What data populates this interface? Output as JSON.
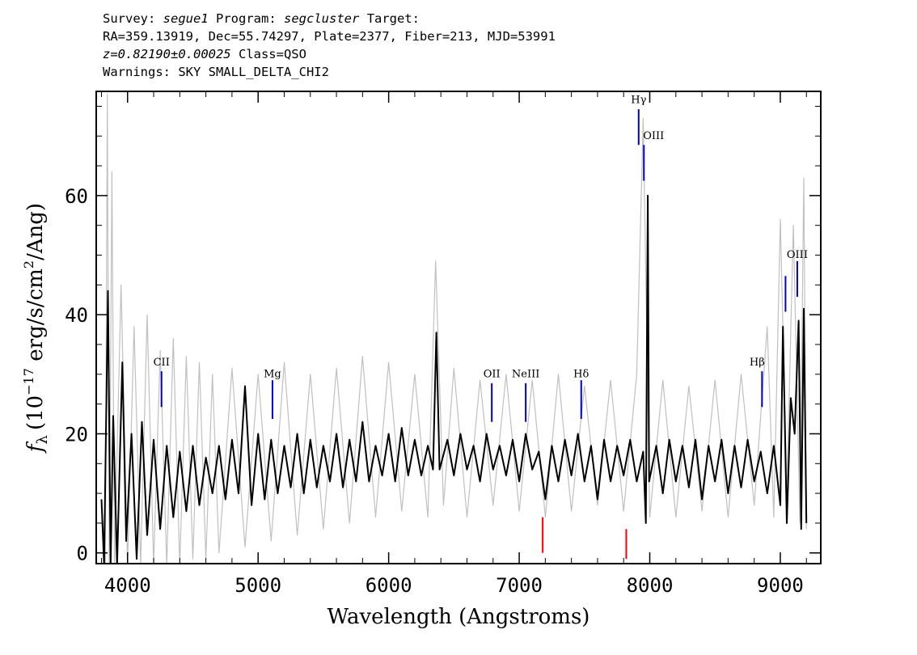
{
  "header": {
    "survey_label": "Survey:",
    "survey": "segue1",
    "program_label": "Program:",
    "program": "segcluster",
    "target_label": "Target:",
    "line2": "RA=359.13919, Dec=55.74297, Plate=2377, Fiber=213, MJD=53991",
    "redshift": "z=0.82190±0.00025",
    "class_text": "Class=QSO",
    "warnings": "Warnings: SKY SMALL_DELTA_CHI2"
  },
  "chart_data": {
    "type": "line",
    "title": "",
    "xlabel": "Wavelength (Angstroms)",
    "ylabel": "f_λ (10^-17 erg/s/cm²/Ang)",
    "ylabel_parts": {
      "f": "f",
      "lambda": "λ",
      "open": "(10",
      "exp": "−17",
      "mid": " erg/s/cm",
      "sq": "2",
      "close": "/Ang)"
    },
    "xlim": [
      3760,
      9310
    ],
    "ylim": [
      -1.8,
      77.5
    ],
    "xticks": [
      4000,
      5000,
      6000,
      7000,
      8000,
      9000
    ],
    "xtick_labels": [
      "4000",
      "5000",
      "6000",
      "7000",
      "8000",
      "9000"
    ],
    "yticks": [
      0,
      20,
      40,
      60
    ],
    "ytick_labels": [
      "0",
      "20",
      "40",
      "60"
    ],
    "series": [
      {
        "name": "error",
        "color": "#c0c0c0",
        "points": [
          [
            3800,
            9
          ],
          [
            3830,
            -2
          ],
          [
            3845,
            77
          ],
          [
            3860,
            -2
          ],
          [
            3880,
            64
          ],
          [
            3900,
            -2
          ],
          [
            3950,
            45
          ],
          [
            4000,
            -2
          ],
          [
            4050,
            38
          ],
          [
            4100,
            -2
          ],
          [
            4150,
            40
          ],
          [
            4200,
            -2
          ],
          [
            4250,
            34
          ],
          [
            4300,
            -2
          ],
          [
            4350,
            36
          ],
          [
            4400,
            -2
          ],
          [
            4450,
            33
          ],
          [
            4500,
            -1
          ],
          [
            4550,
            32
          ],
          [
            4600,
            -1
          ],
          [
            4650,
            30
          ],
          [
            4700,
            0
          ],
          [
            4800,
            31
          ],
          [
            4900,
            1
          ],
          [
            5000,
            30
          ],
          [
            5100,
            2
          ],
          [
            5200,
            32
          ],
          [
            5300,
            3
          ],
          [
            5400,
            30
          ],
          [
            5500,
            4
          ],
          [
            5600,
            31
          ],
          [
            5700,
            5
          ],
          [
            5800,
            33
          ],
          [
            5900,
            6
          ],
          [
            6000,
            32
          ],
          [
            6100,
            7
          ],
          [
            6200,
            30
          ],
          [
            6300,
            6
          ],
          [
            6360,
            49
          ],
          [
            6420,
            8
          ],
          [
            6500,
            31
          ],
          [
            6600,
            6
          ],
          [
            6700,
            29
          ],
          [
            6800,
            8
          ],
          [
            6900,
            30
          ],
          [
            7000,
            7
          ],
          [
            7100,
            29
          ],
          [
            7200,
            6
          ],
          [
            7300,
            30
          ],
          [
            7400,
            7
          ],
          [
            7500,
            28
          ],
          [
            7600,
            8
          ],
          [
            7700,
            29
          ],
          [
            7800,
            7
          ],
          [
            7900,
            30
          ],
          [
            7950,
            73
          ],
          [
            8000,
            6
          ],
          [
            8100,
            29
          ],
          [
            8200,
            6
          ],
          [
            8300,
            28
          ],
          [
            8400,
            7
          ],
          [
            8500,
            29
          ],
          [
            8600,
            6
          ],
          [
            8700,
            30
          ],
          [
            8800,
            8
          ],
          [
            8900,
            38
          ],
          [
            8950,
            6
          ],
          [
            9000,
            56
          ],
          [
            9050,
            10
          ],
          [
            9100,
            55
          ],
          [
            9150,
            5
          ],
          [
            9180,
            63
          ],
          [
            9200,
            4
          ]
        ]
      },
      {
        "name": "flux",
        "color": "#000000",
        "points": [
          [
            3800,
            9
          ],
          [
            3820,
            -2
          ],
          [
            3850,
            44
          ],
          [
            3870,
            -2
          ],
          [
            3890,
            23
          ],
          [
            3920,
            -2
          ],
          [
            3960,
            32
          ],
          [
            3990,
            2
          ],
          [
            4030,
            20
          ],
          [
            4070,
            -1
          ],
          [
            4110,
            22
          ],
          [
            4150,
            3
          ],
          [
            4200,
            19
          ],
          [
            4250,
            4
          ],
          [
            4300,
            18
          ],
          [
            4350,
            6
          ],
          [
            4400,
            17
          ],
          [
            4450,
            7
          ],
          [
            4500,
            18
          ],
          [
            4550,
            8
          ],
          [
            4600,
            16
          ],
          [
            4650,
            10
          ],
          [
            4700,
            18
          ],
          [
            4750,
            9
          ],
          [
            4800,
            19
          ],
          [
            4850,
            10
          ],
          [
            4900,
            28
          ],
          [
            4950,
            8
          ],
          [
            5000,
            20
          ],
          [
            5050,
            9
          ],
          [
            5100,
            19
          ],
          [
            5150,
            10
          ],
          [
            5200,
            18
          ],
          [
            5250,
            11
          ],
          [
            5300,
            20
          ],
          [
            5350,
            10
          ],
          [
            5400,
            19
          ],
          [
            5450,
            11
          ],
          [
            5500,
            18
          ],
          [
            5550,
            12
          ],
          [
            5600,
            20
          ],
          [
            5650,
            11
          ],
          [
            5700,
            19
          ],
          [
            5750,
            12
          ],
          [
            5800,
            22
          ],
          [
            5850,
            12
          ],
          [
            5900,
            18
          ],
          [
            5950,
            13
          ],
          [
            6000,
            20
          ],
          [
            6050,
            12
          ],
          [
            6100,
            21
          ],
          [
            6150,
            13
          ],
          [
            6200,
            19
          ],
          [
            6250,
            13
          ],
          [
            6300,
            18
          ],
          [
            6340,
            14
          ],
          [
            6365,
            37
          ],
          [
            6390,
            14
          ],
          [
            6450,
            19
          ],
          [
            6500,
            13
          ],
          [
            6550,
            20
          ],
          [
            6600,
            14
          ],
          [
            6650,
            18
          ],
          [
            6700,
            12
          ],
          [
            6750,
            20
          ],
          [
            6800,
            14
          ],
          [
            6850,
            18
          ],
          [
            6900,
            13
          ],
          [
            6950,
            19
          ],
          [
            7000,
            12
          ],
          [
            7050,
            20
          ],
          [
            7100,
            14
          ],
          [
            7150,
            17
          ],
          [
            7200,
            9
          ],
          [
            7250,
            18
          ],
          [
            7300,
            12
          ],
          [
            7350,
            19
          ],
          [
            7400,
            13
          ],
          [
            7450,
            20
          ],
          [
            7500,
            12
          ],
          [
            7550,
            18
          ],
          [
            7600,
            9
          ],
          [
            7650,
            19
          ],
          [
            7700,
            12
          ],
          [
            7750,
            18
          ],
          [
            7800,
            13
          ],
          [
            7850,
            19
          ],
          [
            7900,
            12
          ],
          [
            7950,
            17
          ],
          [
            7970,
            5
          ],
          [
            7985,
            60
          ],
          [
            7995,
            12
          ],
          [
            8050,
            18
          ],
          [
            8100,
            10
          ],
          [
            8150,
            19
          ],
          [
            8200,
            12
          ],
          [
            8250,
            18
          ],
          [
            8300,
            11
          ],
          [
            8350,
            19
          ],
          [
            8400,
            9
          ],
          [
            8450,
            18
          ],
          [
            8500,
            12
          ],
          [
            8550,
            19
          ],
          [
            8600,
            10
          ],
          [
            8650,
            18
          ],
          [
            8700,
            11
          ],
          [
            8750,
            19
          ],
          [
            8800,
            12
          ],
          [
            8850,
            17
          ],
          [
            8900,
            10
          ],
          [
            8950,
            18
          ],
          [
            9000,
            8
          ],
          [
            9020,
            38
          ],
          [
            9050,
            5
          ],
          [
            9080,
            26
          ],
          [
            9110,
            20
          ],
          [
            9140,
            39
          ],
          [
            9160,
            4
          ],
          [
            9180,
            41
          ],
          [
            9200,
            5
          ]
        ]
      }
    ],
    "emission_lines": [
      {
        "label": "CII",
        "x": 4260,
        "y_bottom": 24.5,
        "y_top": 30.5,
        "color": "#0000cc",
        "label_y": 31.5,
        "label_dx": 0
      },
      {
        "label": "Mg",
        "x": 5110,
        "y_bottom": 22.5,
        "y_top": 29.0,
        "color": "#0000cc",
        "label_y": 29.5,
        "label_dx": 0
      },
      {
        "label": "OII",
        "x": 6790,
        "y_bottom": 22.0,
        "y_top": 28.5,
        "color": "#0000cc",
        "label_y": 29.5,
        "label_dx": 0
      },
      {
        "label": "NeIII",
        "x": 7050,
        "y_bottom": 22.0,
        "y_top": 28.5,
        "color": "#0000cc",
        "label_y": 29.5,
        "label_dx": 0
      },
      {
        "label": "Hδ",
        "x": 7475,
        "y_bottom": 22.5,
        "y_top": 29.0,
        "color": "#0000cc",
        "label_y": 29.5,
        "label_dx": 0
      },
      {
        "label": "Hγ",
        "x": 7915,
        "y_bottom": 68.5,
        "y_top": 74.5,
        "color": "#0000cc",
        "label_y": 75.5,
        "label_dx": 0
      },
      {
        "label": "OIII",
        "x": 7955,
        "y_bottom": 62.5,
        "y_top": 68.5,
        "color": "#0000cc",
        "label_y": 69.5,
        "label_dx": 12
      },
      {
        "label": "Hβ",
        "x": 8860,
        "y_bottom": 24.5,
        "y_top": 30.5,
        "color": "#0000cc",
        "label_y": 31.5,
        "label_dx": -6
      },
      {
        "label": "",
        "x": 9040,
        "y_bottom": 40.5,
        "y_top": 46.5,
        "color": "#0000cc",
        "label_y": 0,
        "label_dx": 0
      },
      {
        "label": "OIII",
        "x": 9130,
        "y_bottom": 43.0,
        "y_top": 49.0,
        "color": "#0000cc",
        "label_y": 49.5,
        "label_dx": 0
      }
    ],
    "absorption_lines": [
      {
        "label": "",
        "x": 7180,
        "y_bottom": 0.0,
        "y_top": 6.0,
        "color": "#ff0000"
      },
      {
        "label": "",
        "x": 7820,
        "y_bottom": -1.0,
        "y_top": 4.0,
        "color": "#ff0000"
      }
    ]
  }
}
